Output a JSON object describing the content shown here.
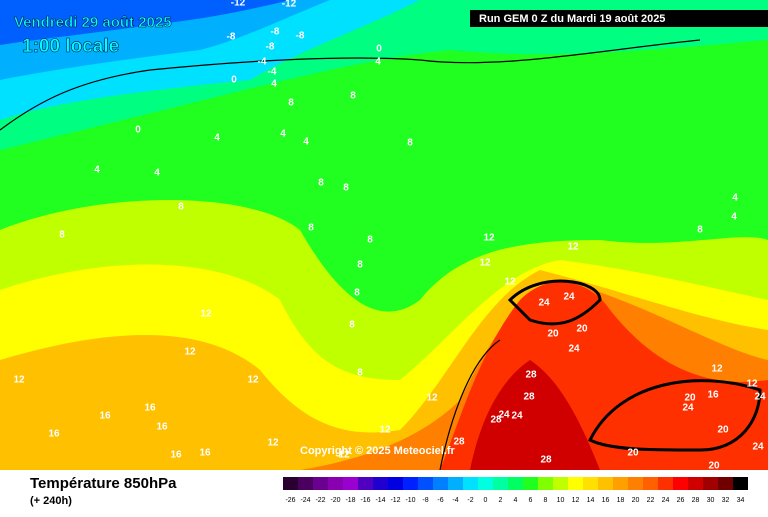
{
  "header": {
    "date": "Vendredi 29 août 2025",
    "time": "1:00 locale",
    "run": "Run GEM 0 Z du Mardi 19 août 2025"
  },
  "copyright": "Copyright © 2025 Meteociel.fr",
  "footer": {
    "title": "Température 850hPa",
    "lead": "(+ 240h)"
  },
  "colorbar": {
    "ticks": [
      -26,
      -24,
      -22,
      -20,
      -18,
      -16,
      -14,
      -12,
      -10,
      -8,
      -6,
      -4,
      -2,
      0,
      2,
      4,
      6,
      8,
      10,
      12,
      14,
      16,
      18,
      20,
      22,
      24,
      26,
      28,
      30,
      32,
      34
    ],
    "colors": [
      "#2a0030",
      "#4b0060",
      "#6a0090",
      "#8800b0",
      "#9a00d0",
      "#5000c0",
      "#2000d0",
      "#0000e0",
      "#0020ff",
      "#0050ff",
      "#0080ff",
      "#00b0ff",
      "#00e0ff",
      "#00ffe0",
      "#00ffa0",
      "#00ff60",
      "#20ff20",
      "#80ff00",
      "#c0ff00",
      "#ffff00",
      "#ffe000",
      "#ffc000",
      "#ffa000",
      "#ff8000",
      "#ff6000",
      "#ff3000",
      "#ff0000",
      "#d00000",
      "#a00000",
      "#700000",
      "#000000"
    ]
  },
  "isotherm_labels": [
    "-12",
    "-12",
    "-8",
    "-8",
    "-8",
    "-8",
    "-4",
    "-4",
    "0",
    "4",
    "0",
    "4",
    "8",
    "8",
    "4",
    "0",
    "4",
    "4",
    "4",
    "4",
    "8",
    "8",
    "8",
    "8",
    "8",
    "8",
    "8",
    "8",
    "8",
    "8",
    "12",
    "12",
    "12",
    "12",
    "4",
    "4",
    "8",
    "12",
    "12",
    "12",
    "12",
    "8",
    "16",
    "16",
    "16",
    "16",
    "12",
    "24",
    "24",
    "20",
    "20",
    "24",
    "28",
    "28",
    "24",
    "24",
    "28",
    "28",
    "28",
    "24",
    "20",
    "16",
    "24",
    "20",
    "20",
    "24",
    "20",
    "12",
    "12",
    "16",
    "16",
    "12",
    "12",
    "12"
  ]
}
